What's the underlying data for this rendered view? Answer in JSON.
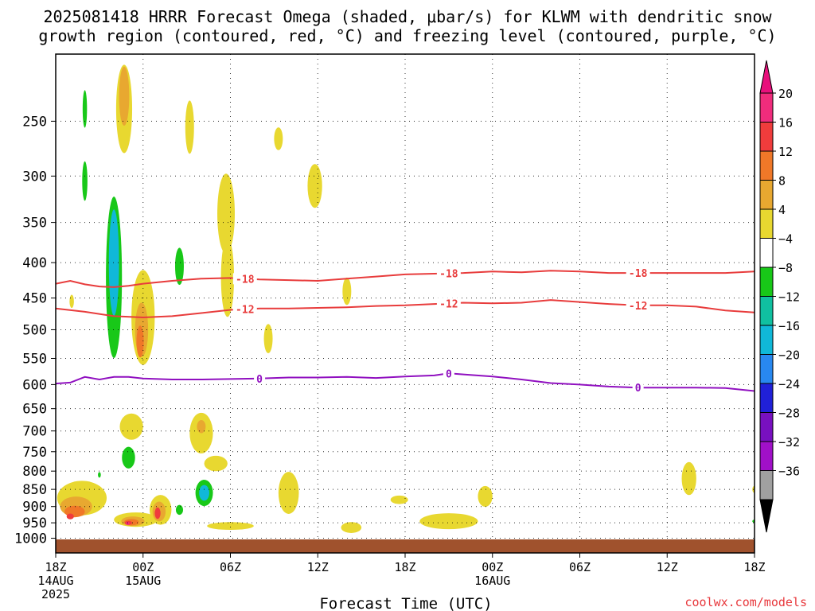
{
  "chart_data": {
    "type": "contour",
    "title_line1": "2025081418 HRRR Forecast Omega (shaded, μbar/s) for KLWM with dendritic snow",
    "title_line2": "growth region (contoured, red, °C) and freezing level (contoured, purple, °C)",
    "xlabel": "Forecast Time (UTC)",
    "ylabel": "",
    "credit": "coolwx.com/models",
    "x_range": [
      "2025-08-14T18:00Z",
      "2025-08-16T18:00Z"
    ],
    "y_scale": "log-pressure",
    "y_range_hpa": [
      1050,
      200
    ],
    "grid": "dotted",
    "x_ticks": [
      {
        "hour": 0,
        "l1": "18Z",
        "l2": "14AUG",
        "l3": "2025"
      },
      {
        "hour": 6,
        "l1": "00Z",
        "l2": "15AUG",
        "l3": ""
      },
      {
        "hour": 12,
        "l1": "06Z",
        "l2": "",
        "l3": ""
      },
      {
        "hour": 18,
        "l1": "12Z",
        "l2": "",
        "l3": ""
      },
      {
        "hour": 24,
        "l1": "18Z",
        "l2": "",
        "l3": ""
      },
      {
        "hour": 30,
        "l1": "00Z",
        "l2": "16AUG",
        "l3": ""
      },
      {
        "hour": 36,
        "l1": "06Z",
        "l2": "",
        "l3": ""
      },
      {
        "hour": 42,
        "l1": "12Z",
        "l2": "",
        "l3": ""
      },
      {
        "hour": 48,
        "l1": "18Z",
        "l2": "",
        "l3": ""
      }
    ],
    "y_ticks": [
      "250",
      "300",
      "350",
      "400",
      "450",
      "500",
      "550",
      "600",
      "650",
      "700",
      "750",
      "800",
      "850",
      "900",
      "950",
      "1000"
    ],
    "colorbar": {
      "labels": [
        "20",
        "16",
        "12",
        "8",
        "4",
        "−4",
        "−8",
        "−12",
        "−16",
        "−20",
        "−24",
        "−28",
        "−32",
        "−36"
      ],
      "colors": [
        "#f02c7c",
        "#f03c3c",
        "#f07828",
        "#e8a830",
        "#e8d830",
        "#ffffff",
        "#18c818",
        "#10c0a0",
        "#10b8d8",
        "#2888f0",
        "#2020d8",
        "#7810c0",
        "#a010c8",
        "#a0a0a0",
        "#000000"
      ]
    },
    "contours": [
      {
        "kind": "dendritic",
        "value": -18,
        "label": "-18",
        "color": "#e83c3c",
        "points": [
          [
            0,
            429
          ],
          [
            1,
            425
          ],
          [
            2,
            430
          ],
          [
            3,
            433
          ],
          [
            4,
            434
          ],
          [
            5,
            432
          ],
          [
            6,
            429
          ],
          [
            8,
            425
          ],
          [
            10,
            422
          ],
          [
            12,
            421
          ],
          [
            14,
            423
          ],
          [
            16,
            424
          ],
          [
            18,
            425
          ],
          [
            20,
            422
          ],
          [
            22,
            419
          ],
          [
            24,
            416
          ],
          [
            26,
            415
          ],
          [
            28,
            414
          ],
          [
            30,
            412
          ],
          [
            32,
            413
          ],
          [
            34,
            411
          ],
          [
            36,
            412
          ],
          [
            38,
            414
          ],
          [
            40,
            414
          ],
          [
            42,
            414
          ],
          [
            44,
            414
          ],
          [
            46,
            414
          ],
          [
            48,
            412
          ]
        ],
        "label_hours": [
          13,
          27,
          40
        ]
      },
      {
        "kind": "dendritic",
        "value": -12,
        "label": "-12",
        "color": "#e83c3c",
        "points": [
          [
            0,
            466
          ],
          [
            2,
            471
          ],
          [
            4,
            478
          ],
          [
            6,
            480
          ],
          [
            8,
            478
          ],
          [
            10,
            473
          ],
          [
            12,
            468
          ],
          [
            14,
            466
          ],
          [
            16,
            466
          ],
          [
            18,
            465
          ],
          [
            20,
            464
          ],
          [
            22,
            462
          ],
          [
            24,
            461
          ],
          [
            26,
            459
          ],
          [
            28,
            457
          ],
          [
            30,
            458
          ],
          [
            32,
            457
          ],
          [
            34,
            453
          ],
          [
            36,
            456
          ],
          [
            38,
            459
          ],
          [
            40,
            461
          ],
          [
            42,
            461
          ],
          [
            44,
            463
          ],
          [
            46,
            469
          ],
          [
            48,
            472
          ]
        ],
        "label_hours": [
          13,
          27,
          40
        ]
      },
      {
        "kind": "freezing",
        "value": 0,
        "label": "0",
        "color": "#9010c0",
        "points": [
          [
            0,
            598
          ],
          [
            1,
            596
          ],
          [
            2,
            585
          ],
          [
            3,
            590
          ],
          [
            4,
            585
          ],
          [
            5,
            585
          ],
          [
            6,
            588
          ],
          [
            8,
            590
          ],
          [
            10,
            590
          ],
          [
            12,
            589
          ],
          [
            14,
            588
          ],
          [
            16,
            586
          ],
          [
            18,
            586
          ],
          [
            20,
            585
          ],
          [
            22,
            587
          ],
          [
            24,
            584
          ],
          [
            26,
            582
          ],
          [
            27,
            578
          ],
          [
            28,
            580
          ],
          [
            30,
            584
          ],
          [
            32,
            590
          ],
          [
            34,
            597
          ],
          [
            36,
            600
          ],
          [
            38,
            604
          ],
          [
            40,
            606
          ],
          [
            42,
            606
          ],
          [
            44,
            606
          ],
          [
            46,
            607
          ],
          [
            48,
            613
          ]
        ],
        "label_hours": [
          14,
          27,
          40
        ]
      }
    ],
    "omega_regions": [
      {
        "level": 4,
        "cx": 4.7,
        "cp": 240,
        "rx": 0.55,
        "dp": 70
      },
      {
        "level": 8,
        "cx": 4.7,
        "cp": 230,
        "rx": 0.35,
        "dp": 45
      },
      {
        "level": 4,
        "cx": 9.2,
        "cp": 255,
        "rx": 0.3,
        "dp": 45
      },
      {
        "level": 4,
        "cx": 11.7,
        "cp": 340,
        "rx": 0.6,
        "dp": 90
      },
      {
        "level": 4,
        "cx": 11.8,
        "cp": 420,
        "rx": 0.45,
        "dp": 110
      },
      {
        "level": 4,
        "cx": 15.3,
        "cp": 265,
        "rx": 0.3,
        "dp": 20
      },
      {
        "level": 4,
        "cx": 17.8,
        "cp": 310,
        "rx": 0.5,
        "dp": 45
      },
      {
        "level": 4,
        "cx": 14.6,
        "cp": 515,
        "rx": 0.3,
        "dp": 50
      },
      {
        "level": 4,
        "cx": 20.0,
        "cp": 440,
        "rx": 0.3,
        "dp": 40
      },
      {
        "level": 4,
        "cx": 6.0,
        "cp": 480,
        "rx": 0.8,
        "dp": 150
      },
      {
        "level": 8,
        "cx": 5.9,
        "cp": 500,
        "rx": 0.45,
        "dp": 90
      },
      {
        "level": 12,
        "cx": 5.8,
        "cp": 520,
        "rx": 0.25,
        "dp": 55
      },
      {
        "level": 4,
        "cx": 5.2,
        "cp": 690,
        "rx": 0.8,
        "dp": 60
      },
      {
        "level": 4,
        "cx": 1.1,
        "cp": 455,
        "rx": 0.15,
        "dp": 20
      },
      {
        "level": 4,
        "cx": 10.0,
        "cp": 705,
        "rx": 0.8,
        "dp": 95
      },
      {
        "level": 8,
        "cx": 10.0,
        "cp": 690,
        "rx": 0.3,
        "dp": 30
      },
      {
        "level": 4,
        "cx": 11.0,
        "cp": 780,
        "rx": 0.8,
        "dp": 40
      },
      {
        "level": 4,
        "cx": 1.8,
        "cp": 875,
        "rx": 1.7,
        "dp": 100
      },
      {
        "level": 8,
        "cx": 1.4,
        "cp": 900,
        "rx": 1.1,
        "dp": 60
      },
      {
        "level": 12,
        "cx": 1.3,
        "cp": 915,
        "rx": 0.7,
        "dp": 35
      },
      {
        "level": 16,
        "cx": 1.0,
        "cp": 930,
        "rx": 0.25,
        "dp": 18
      },
      {
        "level": 4,
        "cx": 5.5,
        "cp": 940,
        "rx": 1.5,
        "dp": 45
      },
      {
        "level": 8,
        "cx": 5.3,
        "cp": 945,
        "rx": 0.8,
        "dp": 30
      },
      {
        "level": 12,
        "cx": 5.2,
        "cp": 948,
        "rx": 0.5,
        "dp": 20
      },
      {
        "level": 16,
        "cx": 5.0,
        "cp": 950,
        "rx": 0.25,
        "dp": 12
      },
      {
        "level": 20,
        "cx": 4.95,
        "cp": 952,
        "rx": 0.12,
        "dp": 6
      },
      {
        "level": 4,
        "cx": 7.2,
        "cp": 910,
        "rx": 0.75,
        "dp": 90
      },
      {
        "level": 8,
        "cx": 7.1,
        "cp": 915,
        "rx": 0.45,
        "dp": 60
      },
      {
        "level": 16,
        "cx": 7.0,
        "cp": 920,
        "rx": 0.2,
        "dp": 35
      },
      {
        "level": 4,
        "cx": 12.0,
        "cp": 960,
        "rx": 1.6,
        "dp": 25
      },
      {
        "level": 4,
        "cx": 16.0,
        "cp": 860,
        "rx": 0.7,
        "dp": 120
      },
      {
        "level": 4,
        "cx": 20.3,
        "cp": 965,
        "rx": 0.7,
        "dp": 35
      },
      {
        "level": 4,
        "cx": 23.6,
        "cp": 880,
        "rx": 0.6,
        "dp": 25
      },
      {
        "level": 4,
        "cx": 27.0,
        "cp": 945,
        "rx": 2.0,
        "dp": 50
      },
      {
        "level": 4,
        "cx": 29.5,
        "cp": 870,
        "rx": 0.5,
        "dp": 60
      },
      {
        "level": 4,
        "cx": 43.5,
        "cp": 820,
        "rx": 0.5,
        "dp": 90
      },
      {
        "level": 4,
        "cx": 48.0,
        "cp": 850,
        "rx": 0.15,
        "dp": 20
      },
      {
        "level": -4,
        "cx": 2.0,
        "cp": 240,
        "rx": 0.15,
        "dp": 30
      },
      {
        "level": -4,
        "cx": 2.0,
        "cp": 305,
        "rx": 0.18,
        "dp": 40
      },
      {
        "level": -4,
        "cx": 4.0,
        "cp": 420,
        "rx": 0.55,
        "dp": 220
      },
      {
        "level": -12,
        "cx": 4.0,
        "cp": 400,
        "rx": 0.35,
        "dp": 140
      },
      {
        "level": -4,
        "cx": 8.5,
        "cp": 405,
        "rx": 0.3,
        "dp": 50
      },
      {
        "level": -4,
        "cx": 5.0,
        "cp": 765,
        "rx": 0.45,
        "dp": 55
      },
      {
        "level": -4,
        "cx": 3.0,
        "cp": 810,
        "rx": 0.1,
        "dp": 15
      },
      {
        "level": -4,
        "cx": 10.2,
        "cp": 860,
        "rx": 0.6,
        "dp": 75
      },
      {
        "level": -12,
        "cx": 10.2,
        "cp": 860,
        "rx": 0.35,
        "dp": 45
      },
      {
        "level": -4,
        "cx": 8.5,
        "cp": 910,
        "rx": 0.25,
        "dp": 30
      },
      {
        "level": -4,
        "cx": 48.0,
        "cp": 945,
        "rx": 0.15,
        "dp": 10
      }
    ]
  }
}
